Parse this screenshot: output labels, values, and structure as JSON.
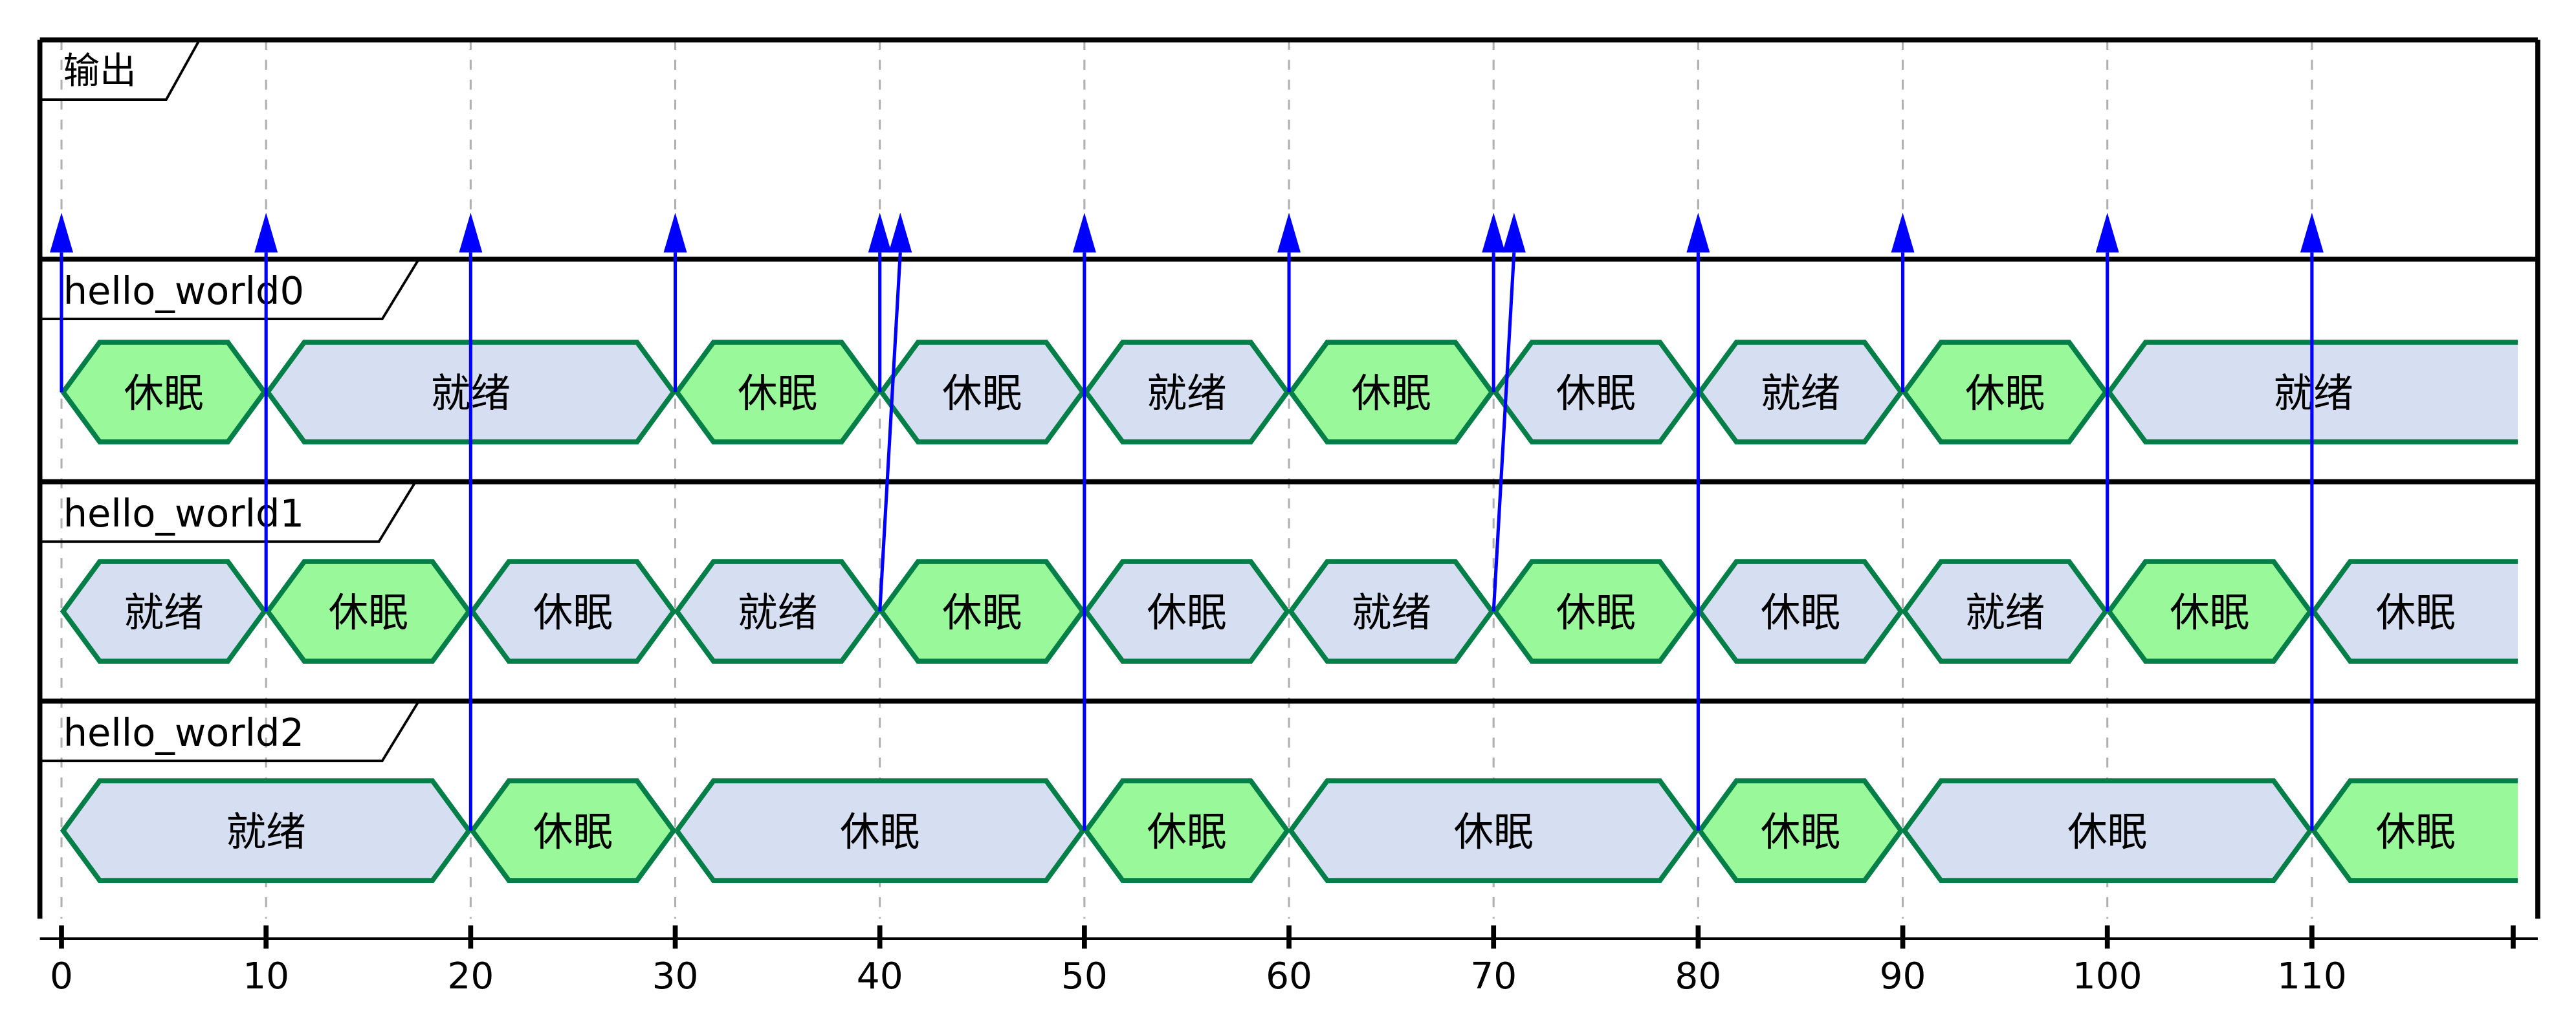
{
  "diagram": {
    "type": "timing",
    "time_axis": {
      "ticks": [
        0,
        10,
        20,
        30,
        40,
        50,
        60,
        70,
        80,
        90,
        100,
        110
      ],
      "end": 120
    },
    "output_row": {
      "label": "输出"
    },
    "colors": {
      "green": "#99f899",
      "blue": "#d6dff2",
      "border": "#047f48",
      "arrow": "#0000ff",
      "grid": "#b0b0b0"
    },
    "rows": [
      {
        "label": "hello_world0",
        "segments": [
          {
            "start": 0,
            "end": 10,
            "state": "休眠",
            "color": "green"
          },
          {
            "start": 10,
            "end": 30,
            "state": "就绪",
            "color": "blue"
          },
          {
            "start": 30,
            "end": 40,
            "state": "休眠",
            "color": "green"
          },
          {
            "start": 40,
            "end": 50,
            "state": "休眠",
            "color": "blue"
          },
          {
            "start": 50,
            "end": 60,
            "state": "就绪",
            "color": "blue"
          },
          {
            "start": 60,
            "end": 70,
            "state": "休眠",
            "color": "green"
          },
          {
            "start": 70,
            "end": 80,
            "state": "休眠",
            "color": "blue"
          },
          {
            "start": 80,
            "end": 90,
            "state": "就绪",
            "color": "blue"
          },
          {
            "start": 90,
            "end": 100,
            "state": "休眠",
            "color": "green"
          },
          {
            "start": 100,
            "end": null,
            "state": "就绪",
            "color": "blue"
          }
        ]
      },
      {
        "label": "hello_world1",
        "segments": [
          {
            "start": 0,
            "end": 10,
            "state": "就绪",
            "color": "blue"
          },
          {
            "start": 10,
            "end": 20,
            "state": "休眠",
            "color": "green"
          },
          {
            "start": 20,
            "end": 30,
            "state": "休眠",
            "color": "blue"
          },
          {
            "start": 30,
            "end": 40,
            "state": "就绪",
            "color": "blue"
          },
          {
            "start": 40,
            "end": 50,
            "state": "休眠",
            "color": "green"
          },
          {
            "start": 50,
            "end": 60,
            "state": "休眠",
            "color": "blue"
          },
          {
            "start": 60,
            "end": 70,
            "state": "就绪",
            "color": "blue"
          },
          {
            "start": 70,
            "end": 80,
            "state": "休眠",
            "color": "green"
          },
          {
            "start": 80,
            "end": 90,
            "state": "休眠",
            "color": "blue"
          },
          {
            "start": 90,
            "end": 100,
            "state": "就绪",
            "color": "blue"
          },
          {
            "start": 100,
            "end": 110,
            "state": "休眠",
            "color": "green"
          },
          {
            "start": 110,
            "end": null,
            "state": "休眠",
            "color": "blue"
          }
        ]
      },
      {
        "label": "hello_world2",
        "segments": [
          {
            "start": 0,
            "end": 20,
            "state": "就绪",
            "color": "blue"
          },
          {
            "start": 20,
            "end": 30,
            "state": "休眠",
            "color": "green"
          },
          {
            "start": 30,
            "end": 50,
            "state": "休眠",
            "color": "blue"
          },
          {
            "start": 50,
            "end": 60,
            "state": "休眠",
            "color": "green"
          },
          {
            "start": 60,
            "end": 80,
            "state": "休眠",
            "color": "blue"
          },
          {
            "start": 80,
            "end": 90,
            "state": "休眠",
            "color": "green"
          },
          {
            "start": 90,
            "end": 110,
            "state": "休眠",
            "color": "blue"
          },
          {
            "start": 110,
            "end": null,
            "state": "休眠",
            "color": "green"
          }
        ]
      }
    ],
    "messages": [
      {
        "from_row": 0,
        "from_t": 0,
        "to_t": 0
      },
      {
        "from_row": 1,
        "from_t": 10,
        "to_t": 10
      },
      {
        "from_row": 2,
        "from_t": 20,
        "to_t": 20
      },
      {
        "from_row": 0,
        "from_t": 30,
        "to_t": 30
      },
      {
        "from_row": 0,
        "from_t": 40,
        "to_t": 40
      },
      {
        "from_row": 1,
        "from_t": 40,
        "to_t": 41
      },
      {
        "from_row": 2,
        "from_t": 50,
        "to_t": 50
      },
      {
        "from_row": 0,
        "from_t": 60,
        "to_t": 60
      },
      {
        "from_row": 0,
        "from_t": 70,
        "to_t": 70
      },
      {
        "from_row": 1,
        "from_t": 70,
        "to_t": 71
      },
      {
        "from_row": 2,
        "from_t": 80,
        "to_t": 80
      },
      {
        "from_row": 0,
        "from_t": 90,
        "to_t": 90
      },
      {
        "from_row": 1,
        "from_t": 100,
        "to_t": 100
      },
      {
        "from_row": 2,
        "from_t": 110,
        "to_t": 110
      }
    ]
  }
}
